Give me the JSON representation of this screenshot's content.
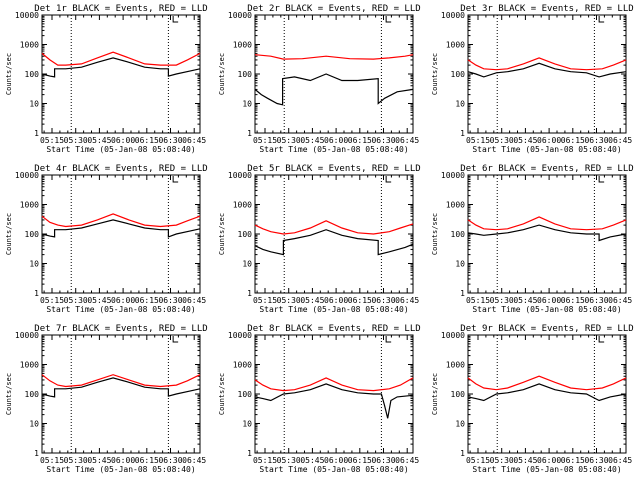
{
  "figure": {
    "columns": 3,
    "tick_labels_x": [
      "05:15",
      "05:30",
      "05:45",
      "06:00",
      "06:15",
      "06:30",
      "06:45"
    ],
    "y_ticks": [
      1,
      10,
      100,
      1000,
      10000
    ],
    "y_tick_labels": [
      "1",
      "10",
      "100",
      "1000",
      "10000"
    ],
    "colors": {
      "events": "#000000",
      "lld": "#ff0000",
      "axis": "#000000"
    }
  },
  "chart_data": [
    {
      "type": "line",
      "title": "Det 1r BLACK = Events, RED = LLD",
      "xlabel": "Start Time (05-Jan-08 05:08:40)",
      "ylabel": "Counts/sec",
      "xlim_minutes_after_start": [
        0,
        100
      ],
      "ylim": [
        1,
        10000
      ],
      "yscale": "log",
      "vlines_minutes": [
        18.5,
        80
      ],
      "marker_minutes": 83,
      "series": [
        {
          "name": "Events",
          "x": [
            0,
            5,
            8,
            8,
            15,
            25,
            35,
            45,
            55,
            65,
            75,
            80,
            80,
            85,
            95,
            100
          ],
          "values": [
            100,
            85,
            80,
            150,
            150,
            170,
            250,
            350,
            250,
            170,
            150,
            150,
            85,
            100,
            130,
            150
          ]
        },
        {
          "name": "LLD",
          "x": [
            0,
            5,
            10,
            15,
            25,
            35,
            45,
            55,
            65,
            75,
            85,
            92,
            100
          ],
          "values": [
            500,
            300,
            200,
            200,
            220,
            350,
            550,
            350,
            220,
            200,
            200,
            300,
            500
          ]
        }
      ]
    },
    {
      "type": "line",
      "title": "Det 2r BLACK = Events, RED = LLD",
      "xlabel": "Start Time (05-Jan-08 05:08:40)",
      "ylabel": "Counts/sec",
      "xlim_minutes_after_start": [
        0,
        100
      ],
      "ylim": [
        1,
        10000
      ],
      "yscale": "log",
      "vlines_minutes": [
        18.5,
        80
      ],
      "marker_minutes": 83,
      "series": [
        {
          "name": "Events",
          "x": [
            0,
            4,
            8,
            14,
            17.5,
            17.5,
            25,
            35,
            45,
            55,
            65,
            78,
            78,
            82,
            90,
            100
          ],
          "values": [
            30,
            20,
            15,
            10,
            9,
            70,
            80,
            60,
            100,
            60,
            60,
            70,
            10,
            15,
            25,
            30
          ]
        },
        {
          "name": "LLD",
          "x": [
            0,
            10,
            18,
            30,
            45,
            60,
            75,
            85,
            95,
            100
          ],
          "values": [
            450,
            400,
            320,
            330,
            400,
            330,
            320,
            350,
            400,
            450
          ]
        }
      ]
    },
    {
      "type": "line",
      "title": "Det 3r BLACK = Events, RED = LLD",
      "xlabel": "Start Time (05-Jan-08 05:08:40)",
      "ylabel": "Counts/sec",
      "xlim_minutes_after_start": [
        0,
        100
      ],
      "ylim": [
        1,
        10000
      ],
      "yscale": "log",
      "vlines_minutes": [
        18.5,
        80
      ],
      "marker_minutes": 83,
      "series": [
        {
          "name": "Events",
          "x": [
            0,
            5,
            10,
            18,
            25,
            35,
            45,
            55,
            65,
            75,
            83,
            90,
            100
          ],
          "values": [
            120,
            100,
            80,
            110,
            120,
            150,
            230,
            150,
            120,
            110,
            80,
            100,
            120
          ]
        },
        {
          "name": "LLD",
          "x": [
            0,
            5,
            10,
            18,
            25,
            35,
            45,
            55,
            65,
            75,
            85,
            92,
            100
          ],
          "values": [
            300,
            200,
            150,
            140,
            150,
            220,
            350,
            220,
            150,
            140,
            150,
            200,
            300
          ]
        }
      ]
    },
    {
      "type": "line",
      "title": "Det 4r BLACK = Events, RED = LLD",
      "xlabel": "Start Time (05-Jan-08 05:08:40)",
      "ylabel": "Counts/sec",
      "xlim_minutes_after_start": [
        0,
        100
      ],
      "ylim": [
        1,
        10000
      ],
      "yscale": "log",
      "vlines_minutes": [
        18.5,
        80
      ],
      "marker_minutes": 83,
      "series": [
        {
          "name": "Events",
          "x": [
            0,
            5,
            8,
            8,
            15,
            25,
            35,
            45,
            55,
            65,
            75,
            80,
            80,
            85,
            95,
            100
          ],
          "values": [
            100,
            85,
            80,
            140,
            140,
            160,
            220,
            300,
            220,
            160,
            140,
            140,
            80,
            100,
            130,
            150
          ]
        },
        {
          "name": "LLD",
          "x": [
            0,
            5,
            10,
            15,
            25,
            35,
            45,
            55,
            65,
            75,
            85,
            92,
            100
          ],
          "values": [
            400,
            250,
            200,
            180,
            200,
            300,
            480,
            300,
            200,
            180,
            200,
            280,
            400
          ]
        }
      ]
    },
    {
      "type": "line",
      "title": "Det 5r BLACK = Events, RED = LLD",
      "xlabel": "Start Time (05-Jan-08 05:08:40)",
      "ylabel": "Counts/sec",
      "xlim_minutes_after_start": [
        0,
        100
      ],
      "ylim": [
        1,
        10000
      ],
      "yscale": "log",
      "vlines_minutes": [
        18.5,
        80
      ],
      "marker_minutes": 83,
      "series": [
        {
          "name": "Events",
          "x": [
            0,
            5,
            10,
            18,
            18,
            25,
            35,
            45,
            55,
            65,
            78,
            78,
            85,
            95,
            100
          ],
          "values": [
            40,
            30,
            25,
            20,
            60,
            70,
            90,
            140,
            90,
            70,
            60,
            20,
            25,
            35,
            45
          ]
        },
        {
          "name": "LLD",
          "x": [
            0,
            5,
            10,
            18,
            25,
            35,
            45,
            55,
            65,
            75,
            85,
            92,
            100
          ],
          "values": [
            200,
            150,
            120,
            100,
            110,
            160,
            280,
            160,
            110,
            100,
            120,
            160,
            220
          ]
        }
      ]
    },
    {
      "type": "line",
      "title": "Det 6r BLACK = Events, RED = LLD",
      "xlabel": "Start Time (05-Jan-08 05:08:40)",
      "ylabel": "Counts/sec",
      "xlim_minutes_after_start": [
        0,
        100
      ],
      "ylim": [
        1,
        10000
      ],
      "yscale": "log",
      "vlines_minutes": [
        18.5,
        80
      ],
      "marker_minutes": 83,
      "series": [
        {
          "name": "Events",
          "x": [
            0,
            5,
            10,
            18,
            25,
            35,
            45,
            55,
            65,
            75,
            83,
            83,
            90,
            100
          ],
          "values": [
            110,
            100,
            90,
            100,
            110,
            140,
            200,
            140,
            110,
            100,
            100,
            60,
            80,
            100
          ]
        },
        {
          "name": "LLD",
          "x": [
            0,
            5,
            10,
            18,
            25,
            35,
            45,
            55,
            65,
            75,
            85,
            92,
            100
          ],
          "values": [
            300,
            200,
            150,
            140,
            150,
            220,
            380,
            220,
            150,
            140,
            150,
            200,
            300
          ]
        }
      ]
    },
    {
      "type": "line",
      "title": "Det 7r BLACK = Events, RED = LLD",
      "xlabel": "Start Time (05-Jan-08 05:08:40)",
      "ylabel": "Counts/sec",
      "xlim_minutes_after_start": [
        0,
        100
      ],
      "ylim": [
        1,
        10000
      ],
      "yscale": "log",
      "vlines_minutes": [
        18.5,
        80
      ],
      "marker_minutes": 83,
      "series": [
        {
          "name": "Events",
          "x": [
            0,
            5,
            8,
            8,
            15,
            25,
            35,
            45,
            55,
            65,
            75,
            80,
            80,
            85,
            95,
            100
          ],
          "values": [
            100,
            85,
            80,
            150,
            150,
            170,
            250,
            350,
            250,
            170,
            150,
            150,
            85,
            100,
            130,
            150
          ]
        },
        {
          "name": "LLD",
          "x": [
            0,
            5,
            10,
            15,
            25,
            35,
            45,
            55,
            65,
            75,
            85,
            92,
            100
          ],
          "values": [
            450,
            280,
            200,
            180,
            200,
            300,
            450,
            300,
            200,
            180,
            200,
            280,
            450
          ]
        }
      ]
    },
    {
      "type": "line",
      "title": "Det 8r BLACK = Events, RED = LLD",
      "xlabel": "Start Time (05-Jan-08 05:08:40)",
      "ylabel": "Counts/sec",
      "xlim_minutes_after_start": [
        0,
        100
      ],
      "ylim": [
        1,
        10000
      ],
      "yscale": "log",
      "vlines_minutes": [
        18.5,
        80
      ],
      "marker_minutes": 83,
      "series": [
        {
          "name": "Events",
          "x": [
            0,
            5,
            10,
            18,
            25,
            35,
            45,
            55,
            65,
            75,
            80,
            82,
            84,
            86,
            90,
            100
          ],
          "values": [
            80,
            70,
            60,
            100,
            110,
            140,
            220,
            140,
            110,
            100,
            100,
            40,
            15,
            60,
            80,
            90
          ]
        },
        {
          "name": "LLD",
          "x": [
            0,
            5,
            10,
            18,
            25,
            35,
            45,
            55,
            65,
            75,
            85,
            92,
            100
          ],
          "values": [
            300,
            200,
            150,
            130,
            140,
            200,
            350,
            200,
            140,
            130,
            150,
            200,
            350
          ]
        }
      ]
    },
    {
      "type": "line",
      "title": "Det 9r BLACK = Events, RED = LLD",
      "xlabel": "Start Time (05-Jan-08 05:08:40)",
      "ylabel": "Counts/sec",
      "xlim_minutes_after_start": [
        0,
        100
      ],
      "ylim": [
        1,
        10000
      ],
      "yscale": "log",
      "vlines_minutes": [
        18.5,
        80
      ],
      "marker_minutes": 83,
      "series": [
        {
          "name": "Events",
          "x": [
            0,
            5,
            10,
            18,
            25,
            35,
            45,
            55,
            65,
            75,
            83,
            90,
            100
          ],
          "values": [
            80,
            70,
            60,
            100,
            110,
            140,
            220,
            140,
            110,
            100,
            60,
            80,
            100
          ]
        },
        {
          "name": "LLD",
          "x": [
            0,
            5,
            10,
            18,
            25,
            35,
            45,
            55,
            65,
            75,
            85,
            92,
            100
          ],
          "values": [
            350,
            220,
            160,
            140,
            160,
            250,
            400,
            250,
            160,
            140,
            160,
            220,
            350
          ]
        }
      ]
    }
  ]
}
